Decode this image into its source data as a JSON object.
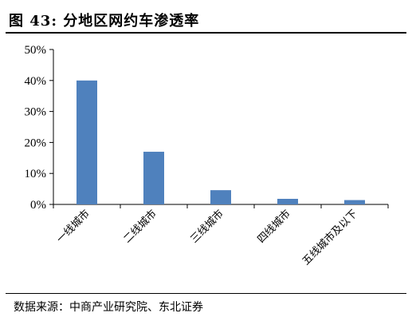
{
  "figure": {
    "title": "图 43: 分地区网约车渗透率",
    "source": "数据来源：中商产业研究院、东北证券"
  },
  "chart_data": {
    "type": "bar",
    "title": "",
    "xlabel": "",
    "ylabel": "",
    "categories": [
      "一线城市",
      "二线城市",
      "三线城市",
      "四线城市",
      "五线城市及以下"
    ],
    "values": [
      40.0,
      17.0,
      4.6,
      1.8,
      1.4
    ],
    "ylim": [
      0,
      50
    ],
    "yticks": [
      0,
      10,
      20,
      30,
      40,
      50
    ],
    "ytick_labels": [
      "0%",
      "10%",
      "20%",
      "30%",
      "40%",
      "50%"
    ],
    "grid": false,
    "legend": "none",
    "bar_color": "#4F81BD"
  }
}
